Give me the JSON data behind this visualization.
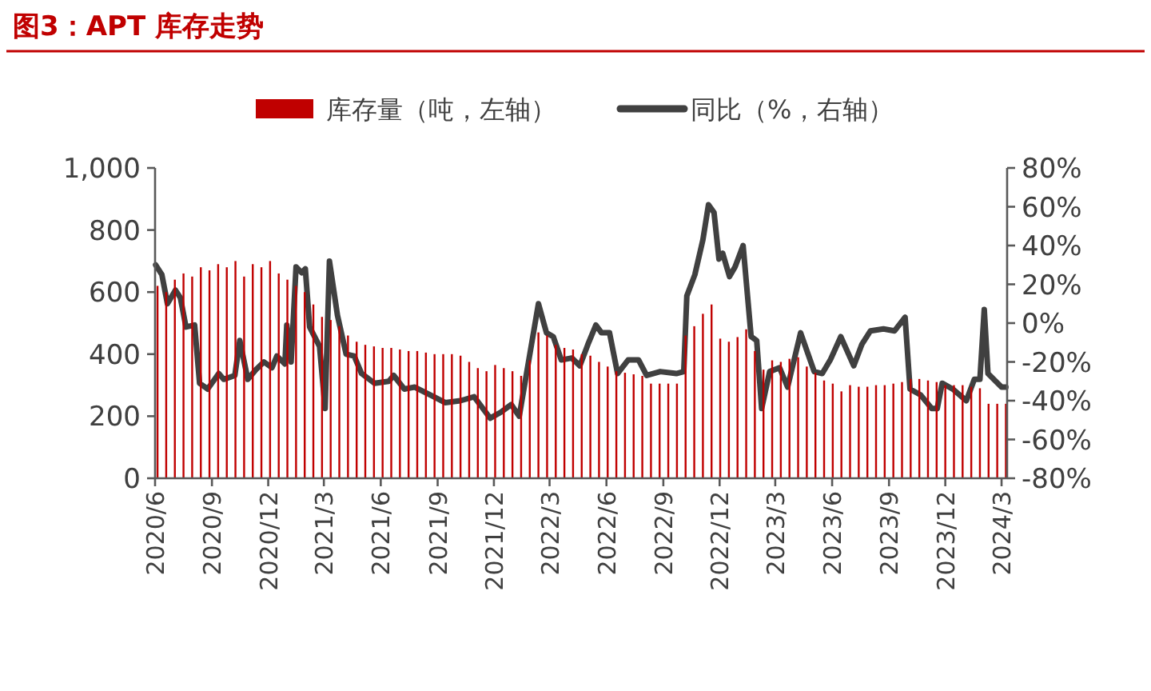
{
  "chart_data": {
    "type": "bar",
    "title": "图3：APT 库存走势",
    "legend": "top",
    "xlim": [
      "2020-06-01",
      "2024-03-10"
    ],
    "xticks": [
      {
        "value": "2020-06-01",
        "label": "2020/6"
      },
      {
        "value": "2020-09-01",
        "label": "2020/9"
      },
      {
        "value": "2020-12-01",
        "label": "2020/12"
      },
      {
        "value": "2021-03-01",
        "label": "2021/3"
      },
      {
        "value": "2021-06-01",
        "label": "2021/6"
      },
      {
        "value": "2021-09-01",
        "label": "2021/9"
      },
      {
        "value": "2021-12-01",
        "label": "2021/12"
      },
      {
        "value": "2022-03-01",
        "label": "2022/3"
      },
      {
        "value": "2022-06-01",
        "label": "2022/6"
      },
      {
        "value": "2022-09-01",
        "label": "2022/9"
      },
      {
        "value": "2022-12-01",
        "label": "2022/12"
      },
      {
        "value": "2023-03-01",
        "label": "2023/3"
      },
      {
        "value": "2023-06-01",
        "label": "2023/6"
      },
      {
        "value": "2023-09-01",
        "label": "2023/9"
      },
      {
        "value": "2023-12-01",
        "label": "2023/12"
      },
      {
        "value": "2024-03-01",
        "label": "2024/3"
      }
    ],
    "ylim": [
      0,
      1000
    ],
    "yticks": [
      0,
      200,
      400,
      600,
      800,
      {
        "value": 1000,
        "label": "1,000"
      }
    ],
    "y2lim": [
      -80,
      80
    ],
    "y2ticks": [
      {
        "value": -80,
        "label": "-80%"
      },
      {
        "value": -60,
        "label": "-60%"
      },
      {
        "value": -40,
        "label": "-40%"
      },
      {
        "value": -20,
        "label": "-20%"
      },
      {
        "value": 0,
        "label": "0%"
      },
      {
        "value": 20,
        "label": "20%"
      },
      {
        "value": 40,
        "label": "40%"
      },
      {
        "value": 60,
        "label": "60%"
      },
      {
        "value": 80,
        "label": "80%"
      }
    ],
    "series": [
      {
        "name": "库存量（吨，左轴）",
        "type": "bar",
        "color": "#c00000",
        "x": [
          "2020-06-05",
          "2020-06-19",
          "2020-07-03",
          "2020-07-17",
          "2020-07-31",
          "2020-08-14",
          "2020-08-28",
          "2020-09-11",
          "2020-09-25",
          "2020-10-09",
          "2020-10-23",
          "2020-11-06",
          "2020-11-20",
          "2020-12-04",
          "2020-12-18",
          "2021-01-01",
          "2021-01-15",
          "2021-01-29",
          "2021-02-12",
          "2021-02-26",
          "2021-03-12",
          "2021-03-26",
          "2021-04-09",
          "2021-04-23",
          "2021-05-07",
          "2021-05-21",
          "2021-06-04",
          "2021-06-18",
          "2021-07-02",
          "2021-07-16",
          "2021-07-30",
          "2021-08-13",
          "2021-08-27",
          "2021-09-10",
          "2021-09-24",
          "2021-10-08",
          "2021-10-22",
          "2021-11-05",
          "2021-11-19",
          "2021-12-03",
          "2021-12-17",
          "2021-12-31",
          "2022-01-14",
          "2022-01-28",
          "2022-02-11",
          "2022-02-25",
          "2022-03-11",
          "2022-03-25",
          "2022-04-08",
          "2022-04-22",
          "2022-05-06",
          "2022-05-20",
          "2022-06-03",
          "2022-06-17",
          "2022-07-01",
          "2022-07-15",
          "2022-07-29",
          "2022-08-12",
          "2022-08-26",
          "2022-09-09",
          "2022-09-23",
          "2022-10-07",
          "2022-10-21",
          "2022-11-04",
          "2022-11-18",
          "2022-12-02",
          "2022-12-16",
          "2022-12-30",
          "2023-01-13",
          "2023-01-27",
          "2023-02-10",
          "2023-02-24",
          "2023-03-10",
          "2023-03-24",
          "2023-04-07",
          "2023-04-21",
          "2023-05-05",
          "2023-05-19",
          "2023-06-02",
          "2023-06-16",
          "2023-06-30",
          "2023-07-14",
          "2023-07-28",
          "2023-08-11",
          "2023-08-25",
          "2023-09-08",
          "2023-09-22",
          "2023-10-06",
          "2023-10-20",
          "2023-11-03",
          "2023-11-17",
          "2023-12-01",
          "2023-12-15",
          "2023-12-29",
          "2024-01-12",
          "2024-01-26",
          "2024-02-09",
          "2024-02-23",
          "2024-03-08"
        ],
        "values": [
          620,
          600,
          640,
          660,
          650,
          680,
          670,
          690,
          680,
          700,
          650,
          690,
          680,
          700,
          660,
          640,
          620,
          600,
          560,
          520,
          510,
          490,
          460,
          440,
          430,
          425,
          420,
          420,
          415,
          410,
          410,
          405,
          400,
          400,
          400,
          395,
          375,
          355,
          345,
          365,
          355,
          345,
          330,
          380,
          470,
          460,
          430,
          420,
          415,
          400,
          395,
          375,
          360,
          345,
          340,
          335,
          330,
          305,
          305,
          305,
          305,
          460,
          490,
          530,
          560,
          450,
          440,
          455,
          480,
          410,
          350,
          380,
          375,
          385,
          390,
          360,
          340,
          315,
          305,
          280,
          300,
          295,
          295,
          300,
          300,
          305,
          310,
          320,
          320,
          315,
          310,
          300,
          300,
          300,
          295,
          290,
          240,
          240,
          240
        ]
      },
      {
        "name": "同比（%，右轴）",
        "type": "line",
        "axis": "y2",
        "color": "#404040",
        "x": [
          "2020-06-02",
          "2020-06-12",
          "2020-06-21",
          "2020-07-04",
          "2020-07-12",
          "2020-07-21",
          "2020-08-04",
          "2020-08-12",
          "2020-08-25",
          "2020-09-12",
          "2020-09-20",
          "2020-10-08",
          "2020-10-16",
          "2020-10-29",
          "2020-11-11",
          "2020-11-24",
          "2020-12-07",
          "2020-12-15",
          "2020-12-28",
          "2020-12-31",
          "2021-01-07",
          "2021-01-15",
          "2021-01-24",
          "2021-01-30",
          "2021-02-06",
          "2021-02-22",
          "2021-03-03",
          "2021-03-10",
          "2021-03-23",
          "2021-04-06",
          "2021-04-19",
          "2021-05-01",
          "2021-05-22",
          "2021-06-14",
          "2021-06-22",
          "2021-07-09",
          "2021-07-26",
          "2021-08-26",
          "2021-09-13",
          "2021-10-08",
          "2021-10-30",
          "2021-11-25",
          "2021-12-12",
          "2021-12-29",
          "2022-01-11",
          "2022-02-11",
          "2022-02-24",
          "2022-03-07",
          "2022-03-20",
          "2022-04-06",
          "2022-04-19",
          "2022-05-02",
          "2022-05-15",
          "2022-05-24",
          "2022-06-06",
          "2022-06-19",
          "2022-07-06",
          "2022-07-23",
          "2022-08-05",
          "2022-08-27",
          "2022-09-22",
          "2022-10-04",
          "2022-10-09",
          "2022-10-22",
          "2022-11-04",
          "2022-11-13",
          "2022-11-22",
          "2022-11-30",
          "2022-12-06",
          "2022-12-17",
          "2022-12-26",
          "2023-01-08",
          "2023-01-21",
          "2023-01-30",
          "2023-02-07",
          "2023-02-20",
          "2023-03-08",
          "2023-03-21",
          "2023-04-11",
          "2023-05-03",
          "2023-05-16",
          "2023-05-29",
          "2023-06-15",
          "2023-07-06",
          "2023-07-19",
          "2023-08-02",
          "2023-08-23",
          "2023-09-10",
          "2023-09-27",
          "2023-10-05",
          "2023-10-22",
          "2023-11-09",
          "2023-11-18",
          "2023-11-26",
          "2023-12-13",
          "2024-01-04",
          "2024-01-17",
          "2024-01-26",
          "2024-02-02",
          "2024-02-08",
          "2024-03-01",
          "2024-03-08"
        ],
        "values": [
          30,
          25,
          10,
          17,
          13,
          -2,
          -1,
          -31,
          -34,
          -26,
          -29,
          -27,
          -9,
          -29,
          -24,
          -20,
          -23,
          -17,
          -21,
          -1,
          -20,
          29,
          26,
          28,
          -2,
          -12,
          -44,
          32,
          4,
          -16,
          -17,
          -26,
          -31,
          -30,
          -27,
          -34,
          -33,
          -38,
          -41,
          -40,
          -38,
          -49,
          -46,
          -42,
          -48,
          10,
          -5,
          -7,
          -19,
          -18,
          -22,
          -11,
          -1,
          -5,
          -5,
          -26,
          -19,
          -19,
          -27,
          -25,
          -26,
          -25,
          14,
          25,
          43,
          61,
          57,
          33,
          36,
          24,
          29,
          40,
          -7,
          -9,
          -44,
          -25,
          -23,
          -33,
          -5,
          -25,
          -26,
          -19,
          -7,
          -22,
          -11,
          -4,
          -3,
          -4,
          3,
          -34,
          -37,
          -44,
          -44,
          -31,
          -34,
          -40,
          -29,
          -29,
          7,
          -26,
          -33,
          -33
        ]
      }
    ]
  }
}
